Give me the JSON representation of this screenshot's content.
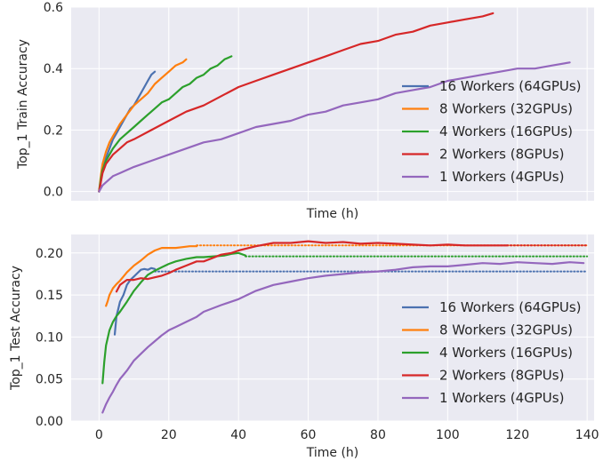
{
  "chart_data": [
    {
      "type": "line",
      "xlabel": "Time (h)",
      "ylabel": "Top_1 Train Accuracy",
      "xlim": [
        -8,
        142
      ],
      "ylim": [
        -0.03,
        0.6
      ],
      "xticks": [
        0,
        20,
        40,
        60,
        80,
        100,
        120,
        140
      ],
      "yticks": [
        0.0,
        0.2,
        0.4,
        0.6
      ],
      "ytick_labels": [
        "0.0",
        "0.2",
        "0.4",
        "0.6"
      ],
      "show_xtick_labels": false,
      "grid": true,
      "legend_position": "lower right",
      "series": [
        {
          "name": "16 Workers (64GPUs)",
          "color": "#4C72B0",
          "x": [
            0,
            0.5,
            1,
            2,
            3,
            4,
            5,
            6,
            7,
            8,
            9,
            10,
            11,
            12,
            13,
            14,
            15,
            16
          ],
          "y": [
            0.0,
            0.03,
            0.07,
            0.11,
            0.14,
            0.17,
            0.19,
            0.21,
            0.23,
            0.25,
            0.27,
            0.28,
            0.3,
            0.32,
            0.34,
            0.36,
            0.38,
            0.39
          ]
        },
        {
          "name": "8 Workers (32GPUs)",
          "color": "#FF7F0E",
          "x": [
            0,
            0.5,
            1,
            2,
            3,
            4,
            5,
            6,
            8,
            10,
            12,
            14,
            16,
            18,
            20,
            22,
            24,
            25
          ],
          "y": [
            0.0,
            0.05,
            0.09,
            0.13,
            0.16,
            0.18,
            0.2,
            0.22,
            0.25,
            0.28,
            0.3,
            0.32,
            0.35,
            0.37,
            0.39,
            0.41,
            0.42,
            0.43
          ]
        },
        {
          "name": "4 Workers (16GPUs)",
          "color": "#2CA02C",
          "x": [
            0,
            0.5,
            1,
            2,
            3,
            4,
            6,
            8,
            10,
            12,
            14,
            16,
            18,
            20,
            22,
            24,
            26,
            28,
            30,
            32,
            34,
            36,
            38
          ],
          "y": [
            0.0,
            0.04,
            0.07,
            0.1,
            0.12,
            0.14,
            0.17,
            0.19,
            0.21,
            0.23,
            0.25,
            0.27,
            0.29,
            0.3,
            0.32,
            0.34,
            0.35,
            0.37,
            0.38,
            0.4,
            0.41,
            0.43,
            0.44
          ]
        },
        {
          "name": "2 Workers (8GPUs)",
          "color": "#D62728",
          "x": [
            0,
            1,
            2,
            4,
            6,
            8,
            10,
            15,
            20,
            25,
            30,
            35,
            40,
            45,
            50,
            55,
            60,
            65,
            70,
            75,
            80,
            85,
            90,
            95,
            100,
            105,
            110,
            113
          ],
          "y": [
            0.0,
            0.06,
            0.09,
            0.12,
            0.14,
            0.16,
            0.17,
            0.2,
            0.23,
            0.26,
            0.28,
            0.31,
            0.34,
            0.36,
            0.38,
            0.4,
            0.42,
            0.44,
            0.46,
            0.48,
            0.49,
            0.51,
            0.52,
            0.54,
            0.55,
            0.56,
            0.57,
            0.58
          ]
        },
        {
          "name": "1 Workers (4GPUs)",
          "color": "#9467BD",
          "x": [
            0,
            1,
            2,
            4,
            6,
            8,
            10,
            15,
            20,
            25,
            30,
            35,
            40,
            45,
            50,
            55,
            60,
            65,
            70,
            75,
            80,
            85,
            90,
            95,
            100,
            105,
            110,
            115,
            120,
            125,
            130,
            135
          ],
          "y": [
            0.0,
            0.02,
            0.03,
            0.05,
            0.06,
            0.07,
            0.08,
            0.1,
            0.12,
            0.14,
            0.16,
            0.17,
            0.19,
            0.21,
            0.22,
            0.23,
            0.25,
            0.26,
            0.28,
            0.29,
            0.3,
            0.32,
            0.33,
            0.34,
            0.36,
            0.37,
            0.38,
            0.39,
            0.4,
            0.4,
            0.41,
            0.42
          ]
        }
      ]
    },
    {
      "type": "line",
      "xlabel": "Time (h)",
      "ylabel": "Top_1 Test Accuracy",
      "xlim": [
        -8,
        142
      ],
      "ylim": [
        0.0,
        0.222
      ],
      "xticks": [
        0,
        20,
        40,
        60,
        80,
        100,
        120,
        140
      ],
      "yticks": [
        0.0,
        0.05,
        0.1,
        0.15,
        0.2
      ],
      "ytick_labels": [
        "0.00",
        "0.05",
        "0.10",
        "0.15",
        "0.20"
      ],
      "show_xtick_labels": true,
      "grid": true,
      "legend_position": "lower right",
      "series": [
        {
          "name": "16 Workers (64GPUs)",
          "color": "#4C72B0",
          "x": [
            4.5,
            5,
            5.5,
            6,
            7,
            8,
            9,
            10,
            11,
            12,
            13,
            14,
            15,
            16
          ],
          "y": [
            0.103,
            0.125,
            0.133,
            0.142,
            0.15,
            0.162,
            0.168,
            0.172,
            0.176,
            0.18,
            0.181,
            0.18,
            0.182,
            0.181
          ],
          "dotted": {
            "x": [
              16,
              140
            ],
            "y": [
              0.178,
              0.178
            ]
          }
        },
        {
          "name": "8 Workers (32GPUs)",
          "color": "#FF7F0E",
          "x": [
            2,
            2.5,
            3,
            4,
            5,
            6,
            7,
            8,
            10,
            12,
            14,
            16,
            18,
            20,
            22,
            24,
            26,
            28
          ],
          "y": [
            0.137,
            0.143,
            0.15,
            0.158,
            0.163,
            0.167,
            0.172,
            0.177,
            0.185,
            0.191,
            0.198,
            0.203,
            0.206,
            0.206,
            0.206,
            0.207,
            0.208,
            0.208
          ],
          "dotted": {
            "x": [
              28,
              140
            ],
            "y": [
              0.209,
              0.209
            ]
          }
        },
        {
          "name": "4 Workers (16GPUs)",
          "color": "#2CA02C",
          "x": [
            1,
            1.5,
            2,
            3,
            4,
            5,
            6,
            7,
            8,
            10,
            12,
            14,
            16,
            18,
            20,
            22,
            25,
            28,
            30,
            33,
            36,
            38,
            40,
            42
          ],
          "y": [
            0.045,
            0.07,
            0.09,
            0.108,
            0.118,
            0.125,
            0.13,
            0.136,
            0.142,
            0.155,
            0.165,
            0.174,
            0.179,
            0.183,
            0.187,
            0.19,
            0.193,
            0.195,
            0.195,
            0.196,
            0.197,
            0.199,
            0.2,
            0.197
          ],
          "dotted": {
            "x": [
              42,
              140
            ],
            "y": [
              0.196,
              0.196
            ]
          }
        },
        {
          "name": "2 Workers (8GPUs)",
          "color": "#D62728",
          "x": [
            5,
            6,
            7,
            8,
            10,
            12,
            14,
            16,
            18,
            20,
            22,
            25,
            28,
            30,
            32,
            35,
            38,
            40,
            45,
            50,
            55,
            60,
            65,
            70,
            75,
            80,
            85,
            90,
            95,
            100,
            105,
            110,
            115,
            117
          ],
          "y": [
            0.154,
            0.162,
            0.165,
            0.168,
            0.168,
            0.17,
            0.169,
            0.171,
            0.173,
            0.176,
            0.18,
            0.185,
            0.19,
            0.19,
            0.193,
            0.198,
            0.2,
            0.203,
            0.208,
            0.212,
            0.212,
            0.214,
            0.212,
            0.213,
            0.211,
            0.212,
            0.211,
            0.21,
            0.209,
            0.21,
            0.209,
            0.209,
            0.209,
            0.209
          ],
          "dotted": {
            "x": [
              117,
              140
            ],
            "y": [
              0.209,
              0.209
            ]
          }
        },
        {
          "name": "1 Workers (4GPUs)",
          "color": "#9467BD",
          "x": [
            1,
            2,
            3,
            4,
            5,
            6,
            7,
            8,
            9,
            10,
            12,
            14,
            16,
            18,
            20,
            22,
            25,
            28,
            30,
            35,
            40,
            45,
            50,
            55,
            60,
            65,
            70,
            75,
            80,
            85,
            90,
            95,
            100,
            105,
            110,
            115,
            120,
            125,
            130,
            135,
            139
          ],
          "y": [
            0.01,
            0.02,
            0.028,
            0.035,
            0.043,
            0.05,
            0.055,
            0.06,
            0.066,
            0.072,
            0.08,
            0.088,
            0.095,
            0.102,
            0.108,
            0.112,
            0.118,
            0.124,
            0.13,
            0.138,
            0.145,
            0.155,
            0.162,
            0.166,
            0.17,
            0.173,
            0.175,
            0.177,
            0.178,
            0.18,
            0.183,
            0.184,
            0.184,
            0.186,
            0.188,
            0.187,
            0.189,
            0.188,
            0.187,
            0.189,
            0.188
          ]
        }
      ]
    }
  ]
}
